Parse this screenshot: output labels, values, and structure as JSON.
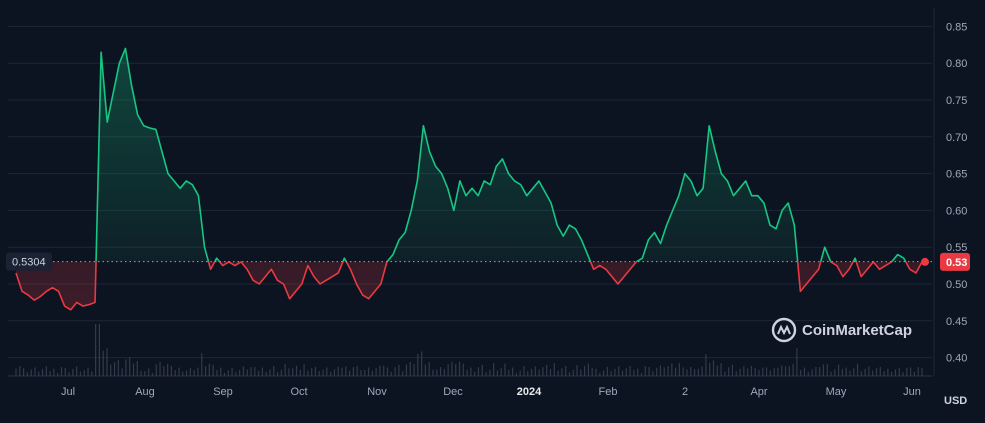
{
  "chart_data": {
    "type": "area",
    "x_ticks": [
      "Jul",
      "Aug",
      "Sep",
      "Oct",
      "Nov",
      "Dec",
      "2024",
      "Feb",
      "2",
      "Apr",
      "May",
      "Jun"
    ],
    "y_ticks": [
      "0.85",
      "0.80",
      "0.75",
      "0.70",
      "0.65",
      "0.60",
      "0.55",
      "0.50",
      "0.45",
      "0.40"
    ],
    "ylim": [
      0.375,
      0.875
    ],
    "unit": "USD",
    "reference_value": 0.5304,
    "reference_label": "0.5304",
    "current_value": 0.53,
    "current_label": "0.53",
    "watermark": "CoinMarketCap",
    "colors": {
      "background": "#0d1421",
      "up": "#16c784",
      "down": "#ea3943",
      "grid": "#1d2636",
      "volume": "#3a4152"
    },
    "series": [
      {
        "values": [
          0.515,
          0.49,
          0.485,
          0.478,
          0.483,
          0.49,
          0.495,
          0.49,
          0.47,
          0.465,
          0.475,
          0.47,
          0.472,
          0.475,
          0.815,
          0.72,
          0.76,
          0.8,
          0.82,
          0.77,
          0.73,
          0.715,
          0.712,
          0.71,
          0.68,
          0.65,
          0.64,
          0.63,
          0.64,
          0.635,
          0.62,
          0.55,
          0.52,
          0.535,
          0.525,
          0.53,
          0.525,
          0.53,
          0.52,
          0.505,
          0.5,
          0.51,
          0.52,
          0.505,
          0.5,
          0.48,
          0.49,
          0.5,
          0.525,
          0.51,
          0.5,
          0.505,
          0.51,
          0.515,
          0.535,
          0.52,
          0.5,
          0.485,
          0.48,
          0.49,
          0.5,
          0.53,
          0.54,
          0.56,
          0.57,
          0.6,
          0.64,
          0.715,
          0.68,
          0.66,
          0.65,
          0.63,
          0.6,
          0.64,
          0.62,
          0.63,
          0.62,
          0.64,
          0.635,
          0.66,
          0.67,
          0.65,
          0.64,
          0.635,
          0.62,
          0.63,
          0.64,
          0.625,
          0.61,
          0.58,
          0.565,
          0.58,
          0.575,
          0.56,
          0.54,
          0.52,
          0.525,
          0.52,
          0.51,
          0.5,
          0.51,
          0.52,
          0.53,
          0.535,
          0.56,
          0.57,
          0.555,
          0.58,
          0.6,
          0.62,
          0.65,
          0.64,
          0.62,
          0.63,
          0.715,
          0.68,
          0.65,
          0.64,
          0.62,
          0.63,
          0.64,
          0.62,
          0.62,
          0.61,
          0.58,
          0.575,
          0.6,
          0.61,
          0.58,
          0.49,
          0.5,
          0.51,
          0.52,
          0.55,
          0.53,
          0.525,
          0.51,
          0.52,
          0.535,
          0.51,
          0.52,
          0.53,
          0.52,
          0.525,
          0.53,
          0.54,
          0.535,
          0.52,
          0.515,
          0.53
        ]
      }
    ]
  }
}
